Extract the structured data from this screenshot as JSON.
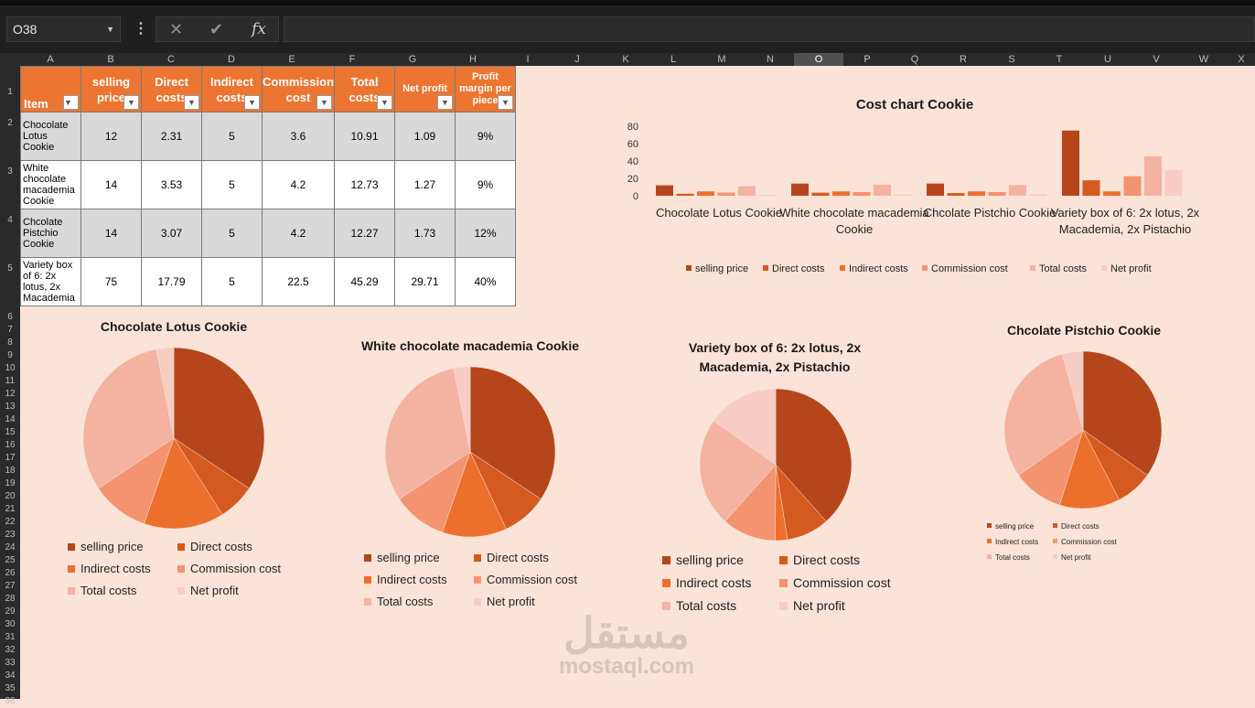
{
  "formula_bar": {
    "name_box": "O38",
    "fx": "fx"
  },
  "columns": [
    "A",
    "B",
    "C",
    "D",
    "E",
    "F",
    "G",
    "H",
    "I",
    "J",
    "K",
    "L",
    "M",
    "N",
    "O",
    "P",
    "Q",
    "R",
    "S",
    "T",
    "U",
    "V",
    "W",
    "X"
  ],
  "rows": [
    "1",
    "2",
    "3",
    "4",
    "5",
    "6",
    "7",
    "8",
    "9",
    "10",
    "11",
    "12",
    "13",
    "14",
    "15",
    "16",
    "17",
    "18",
    "19",
    "20",
    "21",
    "22",
    "23",
    "24",
    "25",
    "26",
    "27",
    "28",
    "29",
    "30",
    "31",
    "32",
    "33",
    "34",
    "35",
    "36"
  ],
  "table": {
    "headers": [
      "Item",
      "selling price",
      "Direct costs",
      "Indirect costs",
      "Commission cost",
      "Total costs",
      "Net profit",
      "Profit margin per piece"
    ],
    "rows": [
      {
        "item": "Chocolate Lotus Cookie",
        "selling_price": "12",
        "direct": "2.31",
        "indirect": "5",
        "commission": "3.6",
        "total": "10.91",
        "net": "1.09",
        "margin": "9%"
      },
      {
        "item": "White chocolate macademia Cookie",
        "selling_price": "14",
        "direct": "3.53",
        "indirect": "5",
        "commission": "4.2",
        "total": "12.73",
        "net": "1.27",
        "margin": "9%"
      },
      {
        "item": "Chcolate Pistchio Cookie",
        "selling_price": "14",
        "direct": "3.07",
        "indirect": "5",
        "commission": "4.2",
        "total": "12.27",
        "net": "1.73",
        "margin": "12%"
      },
      {
        "item": "Variety box of 6: 2x lotus, 2x Macademia",
        "selling_price": "75",
        "direct": "17.79",
        "indirect": "5",
        "commission": "22.5",
        "total": "45.29",
        "net": "29.71",
        "margin": "40%"
      }
    ]
  },
  "series_colors": [
    "#b5461b",
    "#d45a20",
    "#ed6f2c",
    "#f39370",
    "#f4b2a1",
    "#f6ccc3"
  ],
  "legend": [
    "selling price",
    "Direct costs",
    "Indirect costs",
    "Commission cost",
    "Total costs",
    "Net profit"
  ],
  "chart_data": [
    {
      "type": "bar",
      "title": "Cost chart Cookie",
      "categories": [
        "Chocolate Lotus Cookie",
        "White chocolate macademia Cookie",
        "Chcolate Pistchio Cookie",
        "Variety box of 6: 2x lotus, 2x Macademia, 2x Pistachio"
      ],
      "ylim": [
        0,
        80
      ],
      "yticks": [
        "0",
        "20",
        "40",
        "60",
        "80"
      ],
      "series": [
        {
          "name": "selling price",
          "values": [
            12,
            14,
            14,
            75
          ]
        },
        {
          "name": "Direct costs",
          "values": [
            2.31,
            3.53,
            3.07,
            17.79
          ]
        },
        {
          "name": "Indirect costs",
          "values": [
            5,
            5,
            5,
            5
          ]
        },
        {
          "name": "Commission cost",
          "values": [
            3.6,
            4.2,
            4.2,
            22.5
          ]
        },
        {
          "name": "Total costs",
          "values": [
            10.91,
            12.73,
            12.27,
            45.29
          ]
        },
        {
          "name": "Net profit",
          "values": [
            1.09,
            1.27,
            1.73,
            29.71
          ]
        }
      ],
      "legend_position": "bottom"
    },
    {
      "type": "pie",
      "title": "Chocolate Lotus Cookie",
      "labels": [
        "selling price",
        "Direct costs",
        "Indirect costs",
        "Commission cost",
        "Total costs",
        "Net profit"
      ],
      "values": [
        12,
        2.31,
        5,
        3.6,
        10.91,
        1.09
      ]
    },
    {
      "type": "pie",
      "title": "White chocolate macademia Cookie",
      "labels": [
        "selling price",
        "Direct costs",
        "Indirect costs",
        "Commission cost",
        "Total costs",
        "Net profit"
      ],
      "values": [
        14,
        3.53,
        5,
        4.2,
        12.73,
        1.27
      ]
    },
    {
      "type": "pie",
      "title": "Variety box of 6: 2x lotus, 2x Macademia, 2x Pistachio",
      "labels": [
        "selling price",
        "Direct costs",
        "Indirect costs",
        "Commission cost",
        "Total costs",
        "Net profit"
      ],
      "values": [
        75,
        17.79,
        5,
        22.5,
        45.29,
        29.71
      ]
    },
    {
      "type": "pie",
      "title": "Chcolate Pistchio Cookie",
      "labels": [
        "selling price",
        "Direct costs",
        "Indirect costs",
        "Commission cost",
        "Total costs",
        "Net profit"
      ],
      "values": [
        14,
        3.07,
        5,
        4.2,
        12.27,
        1.73
      ]
    }
  ],
  "watermark": {
    "arabic": "مستقل",
    "latin": "mostaql.com"
  }
}
